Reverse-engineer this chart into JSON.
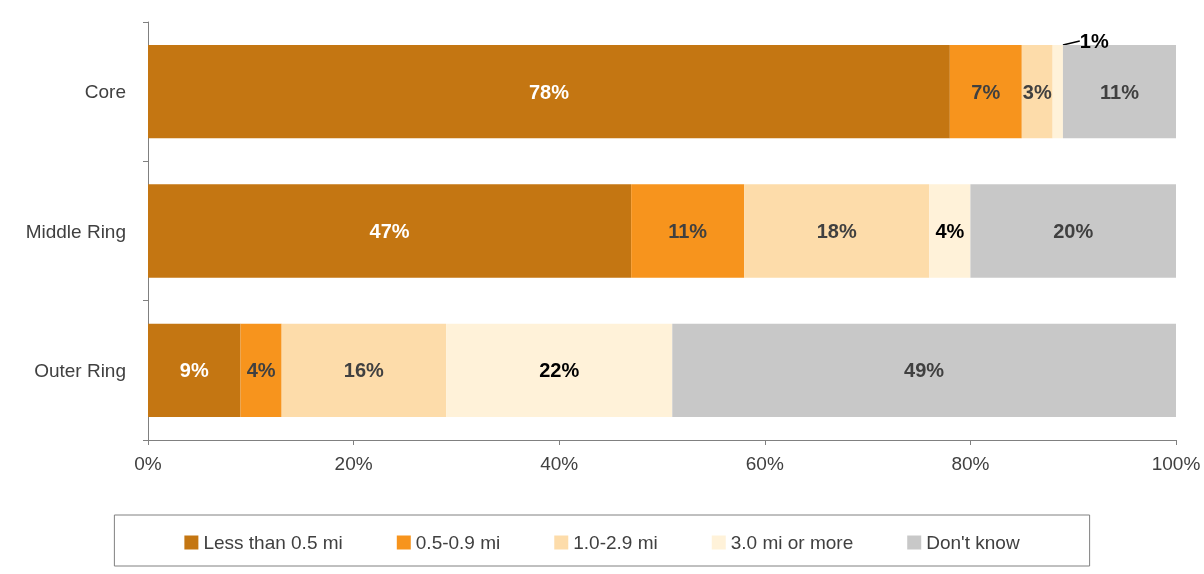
{
  "chart_data": {
    "type": "bar",
    "orientation": "horizontal",
    "stacked": true,
    "categories": [
      "Core",
      "Middle Ring",
      "Outer Ring"
    ],
    "series": [
      {
        "name": "Less than 0.5 mi",
        "color": "#c47612",
        "values": [
          78,
          47,
          9
        ]
      },
      {
        "name": "0.5-0.9 mi",
        "color": "#f7941d",
        "values": [
          7,
          11,
          4
        ]
      },
      {
        "name": "1.0-2.9 mi",
        "color": "#fddcaa",
        "values": [
          3,
          18,
          16
        ]
      },
      {
        "name": "3.0 mi or more",
        "color": "#fff2d9",
        "values": [
          1,
          4,
          22
        ]
      },
      {
        "name": "Don't know",
        "color": "#c8c8c8",
        "values": [
          11,
          20,
          49
        ]
      }
    ],
    "value_labels": [
      [
        "78%",
        "47%",
        "9%"
      ],
      [
        "7%",
        "11%",
        "4%"
      ],
      [
        "3%",
        "18%",
        "16%"
      ],
      [
        "1%",
        "4%",
        "22%"
      ],
      [
        "11%",
        "20%",
        "49%"
      ]
    ],
    "xlim": [
      0,
      100
    ],
    "xticks": [
      {
        "value": 0,
        "label": "0%"
      },
      {
        "value": 20,
        "label": "20%"
      },
      {
        "value": 40,
        "label": "40%"
      },
      {
        "value": 60,
        "label": "60%"
      },
      {
        "value": 80,
        "label": "80%"
      },
      {
        "value": 100,
        "label": "100%"
      }
    ],
    "legend": "bottom",
    "grid": false
  }
}
